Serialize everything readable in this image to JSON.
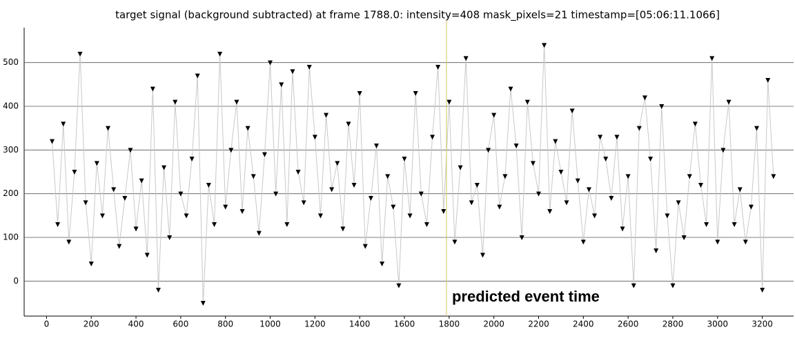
{
  "chart_data": {
    "type": "line",
    "title": "target signal (background subtracted) at frame 1788.0: intensity=408 mask_pixels=21 timestamp=[05:06:11.1066]",
    "x": [
      25,
      50,
      75,
      100,
      125,
      150,
      175,
      200,
      225,
      250,
      275,
      300,
      325,
      350,
      375,
      400,
      425,
      450,
      475,
      500,
      525,
      550,
      575,
      600,
      625,
      650,
      675,
      700,
      725,
      750,
      775,
      800,
      825,
      850,
      875,
      900,
      925,
      950,
      975,
      1000,
      1025,
      1050,
      1075,
      1100,
      1125,
      1150,
      1175,
      1200,
      1225,
      1250,
      1275,
      1300,
      1325,
      1350,
      1375,
      1400,
      1425,
      1450,
      1475,
      1500,
      1525,
      1550,
      1575,
      1600,
      1625,
      1650,
      1675,
      1700,
      1725,
      1750,
      1775,
      1800,
      1825,
      1850,
      1875,
      1900,
      1925,
      1950,
      1975,
      2000,
      2025,
      2050,
      2075,
      2100,
      2125,
      2150,
      2175,
      2200,
      2225,
      2250,
      2275,
      2300,
      2325,
      2350,
      2375,
      2400,
      2425,
      2450,
      2475,
      2500,
      2525,
      2550,
      2575,
      2600,
      2625,
      2650,
      2675,
      2700,
      2725,
      2750,
      2775,
      2800,
      2825,
      2850,
      2875,
      2900,
      2925,
      2950,
      2975,
      3000,
      3025,
      3050,
      3075,
      3100,
      3125,
      3150,
      3175,
      3200,
      3225,
      3250
    ],
    "values": [
      320,
      130,
      360,
      90,
      250,
      520,
      180,
      40,
      270,
      150,
      350,
      210,
      80,
      190,
      300,
      120,
      230,
      60,
      440,
      -20,
      260,
      100,
      410,
      200,
      150,
      280,
      470,
      -50,
      220,
      130,
      520,
      170,
      300,
      410,
      160,
      350,
      240,
      110,
      290,
      500,
      200,
      450,
      130,
      480,
      250,
      180,
      490,
      330,
      150,
      380,
      210,
      270,
      120,
      360,
      220,
      430,
      80,
      190,
      310,
      40,
      240,
      170,
      -10,
      280,
      150,
      430,
      200,
      130,
      330,
      490,
      160,
      410,
      90,
      260,
      510,
      180,
      220,
      60,
      300,
      380,
      170,
      240,
      440,
      310,
      100,
      410,
      270,
      200,
      540,
      160,
      320,
      250,
      180,
      390,
      230,
      90,
      210,
      150,
      330,
      280,
      190,
      330,
      120,
      240,
      -10,
      350,
      420,
      280,
      70,
      400,
      150,
      -10,
      180,
      100,
      240,
      360,
      220,
      130,
      510,
      90,
      300,
      410,
      130,
      210,
      90,
      170,
      350,
      -20,
      460,
      240
    ],
    "color": "#000000",
    "line_color": "#c8c8c8",
    "marker": "triangle-down",
    "xlim": [
      -100,
      3340
    ],
    "ylim": [
      -80,
      580
    ],
    "xticks": [
      0,
      200,
      400,
      600,
      800,
      1000,
      1200,
      1400,
      1600,
      1800,
      2000,
      2200,
      2400,
      2600,
      2800,
      3000,
      3200
    ],
    "yticks": [
      0,
      100,
      200,
      300,
      400,
      500
    ],
    "grid": true,
    "event_line": {
      "x": 1788,
      "color": "#d8cc7a",
      "label": "predicted event time"
    }
  }
}
